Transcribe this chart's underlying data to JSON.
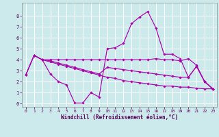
{
  "xlabel": "Windchill (Refroidissement éolien,°C)",
  "xlim": [
    -0.5,
    23.5
  ],
  "ylim": [
    -0.3,
    9.2
  ],
  "xticks": [
    0,
    1,
    2,
    3,
    4,
    5,
    6,
    7,
    8,
    9,
    10,
    11,
    12,
    13,
    14,
    15,
    16,
    17,
    18,
    19,
    20,
    21,
    22,
    23
  ],
  "yticks": [
    0,
    1,
    2,
    3,
    4,
    5,
    6,
    7,
    8
  ],
  "background_color": "#cce9ec",
  "line_color": "#aa00aa",
  "grid_color": "#ffffff",
  "lines": [
    {
      "x": [
        1,
        2,
        3,
        4,
        5,
        6,
        7,
        8,
        9,
        10,
        11,
        12,
        13,
        14,
        15,
        16,
        17,
        18,
        19,
        20,
        21,
        22,
        23
      ],
      "y": [
        4.4,
        4.0,
        2.7,
        2.0,
        1.7,
        0.05,
        0.05,
        1.0,
        0.6,
        5.0,
        5.1,
        5.5,
        7.3,
        7.9,
        8.4,
        6.9,
        4.5,
        4.5,
        4.1,
        2.4,
        3.4,
        2.0,
        1.35
      ]
    },
    {
      "x": [
        0,
        1,
        2,
        3,
        4,
        5,
        6,
        7,
        8,
        9,
        10,
        11,
        12,
        13,
        14,
        15,
        16,
        17,
        18,
        19,
        20,
        21,
        22,
        23
      ],
      "y": [
        2.65,
        4.4,
        4.0,
        4.0,
        4.0,
        4.0,
        4.0,
        4.0,
        4.0,
        4.0,
        4.0,
        4.0,
        4.0,
        4.0,
        4.0,
        4.0,
        4.1,
        4.0,
        4.0,
        3.9,
        4.1,
        3.5,
        2.0,
        1.35
      ]
    },
    {
      "x": [
        0,
        1,
        2,
        3,
        4,
        5,
        6,
        7,
        8,
        9,
        10,
        11,
        12,
        13,
        14,
        15,
        16,
        17,
        18,
        19,
        20,
        21,
        22,
        23
      ],
      "y": [
        2.65,
        4.4,
        4.0,
        3.8,
        3.6,
        3.4,
        3.2,
        3.0,
        2.8,
        2.6,
        2.4,
        2.3,
        2.1,
        2.0,
        1.9,
        1.8,
        1.7,
        1.6,
        1.6,
        1.5,
        1.5,
        1.4,
        1.35,
        1.35
      ]
    },
    {
      "x": [
        0,
        1,
        2,
        3,
        4,
        5,
        6,
        7,
        8,
        9,
        10,
        11,
        12,
        13,
        14,
        15,
        16,
        17,
        18,
        19,
        20,
        21,
        22,
        23
      ],
      "y": [
        2.65,
        4.4,
        4.0,
        3.9,
        3.7,
        3.5,
        3.3,
        3.1,
        2.9,
        2.7,
        3.3,
        3.2,
        3.1,
        3.0,
        2.9,
        2.8,
        2.7,
        2.6,
        2.5,
        2.4,
        2.4,
        3.4,
        2.0,
        1.35
      ]
    }
  ]
}
